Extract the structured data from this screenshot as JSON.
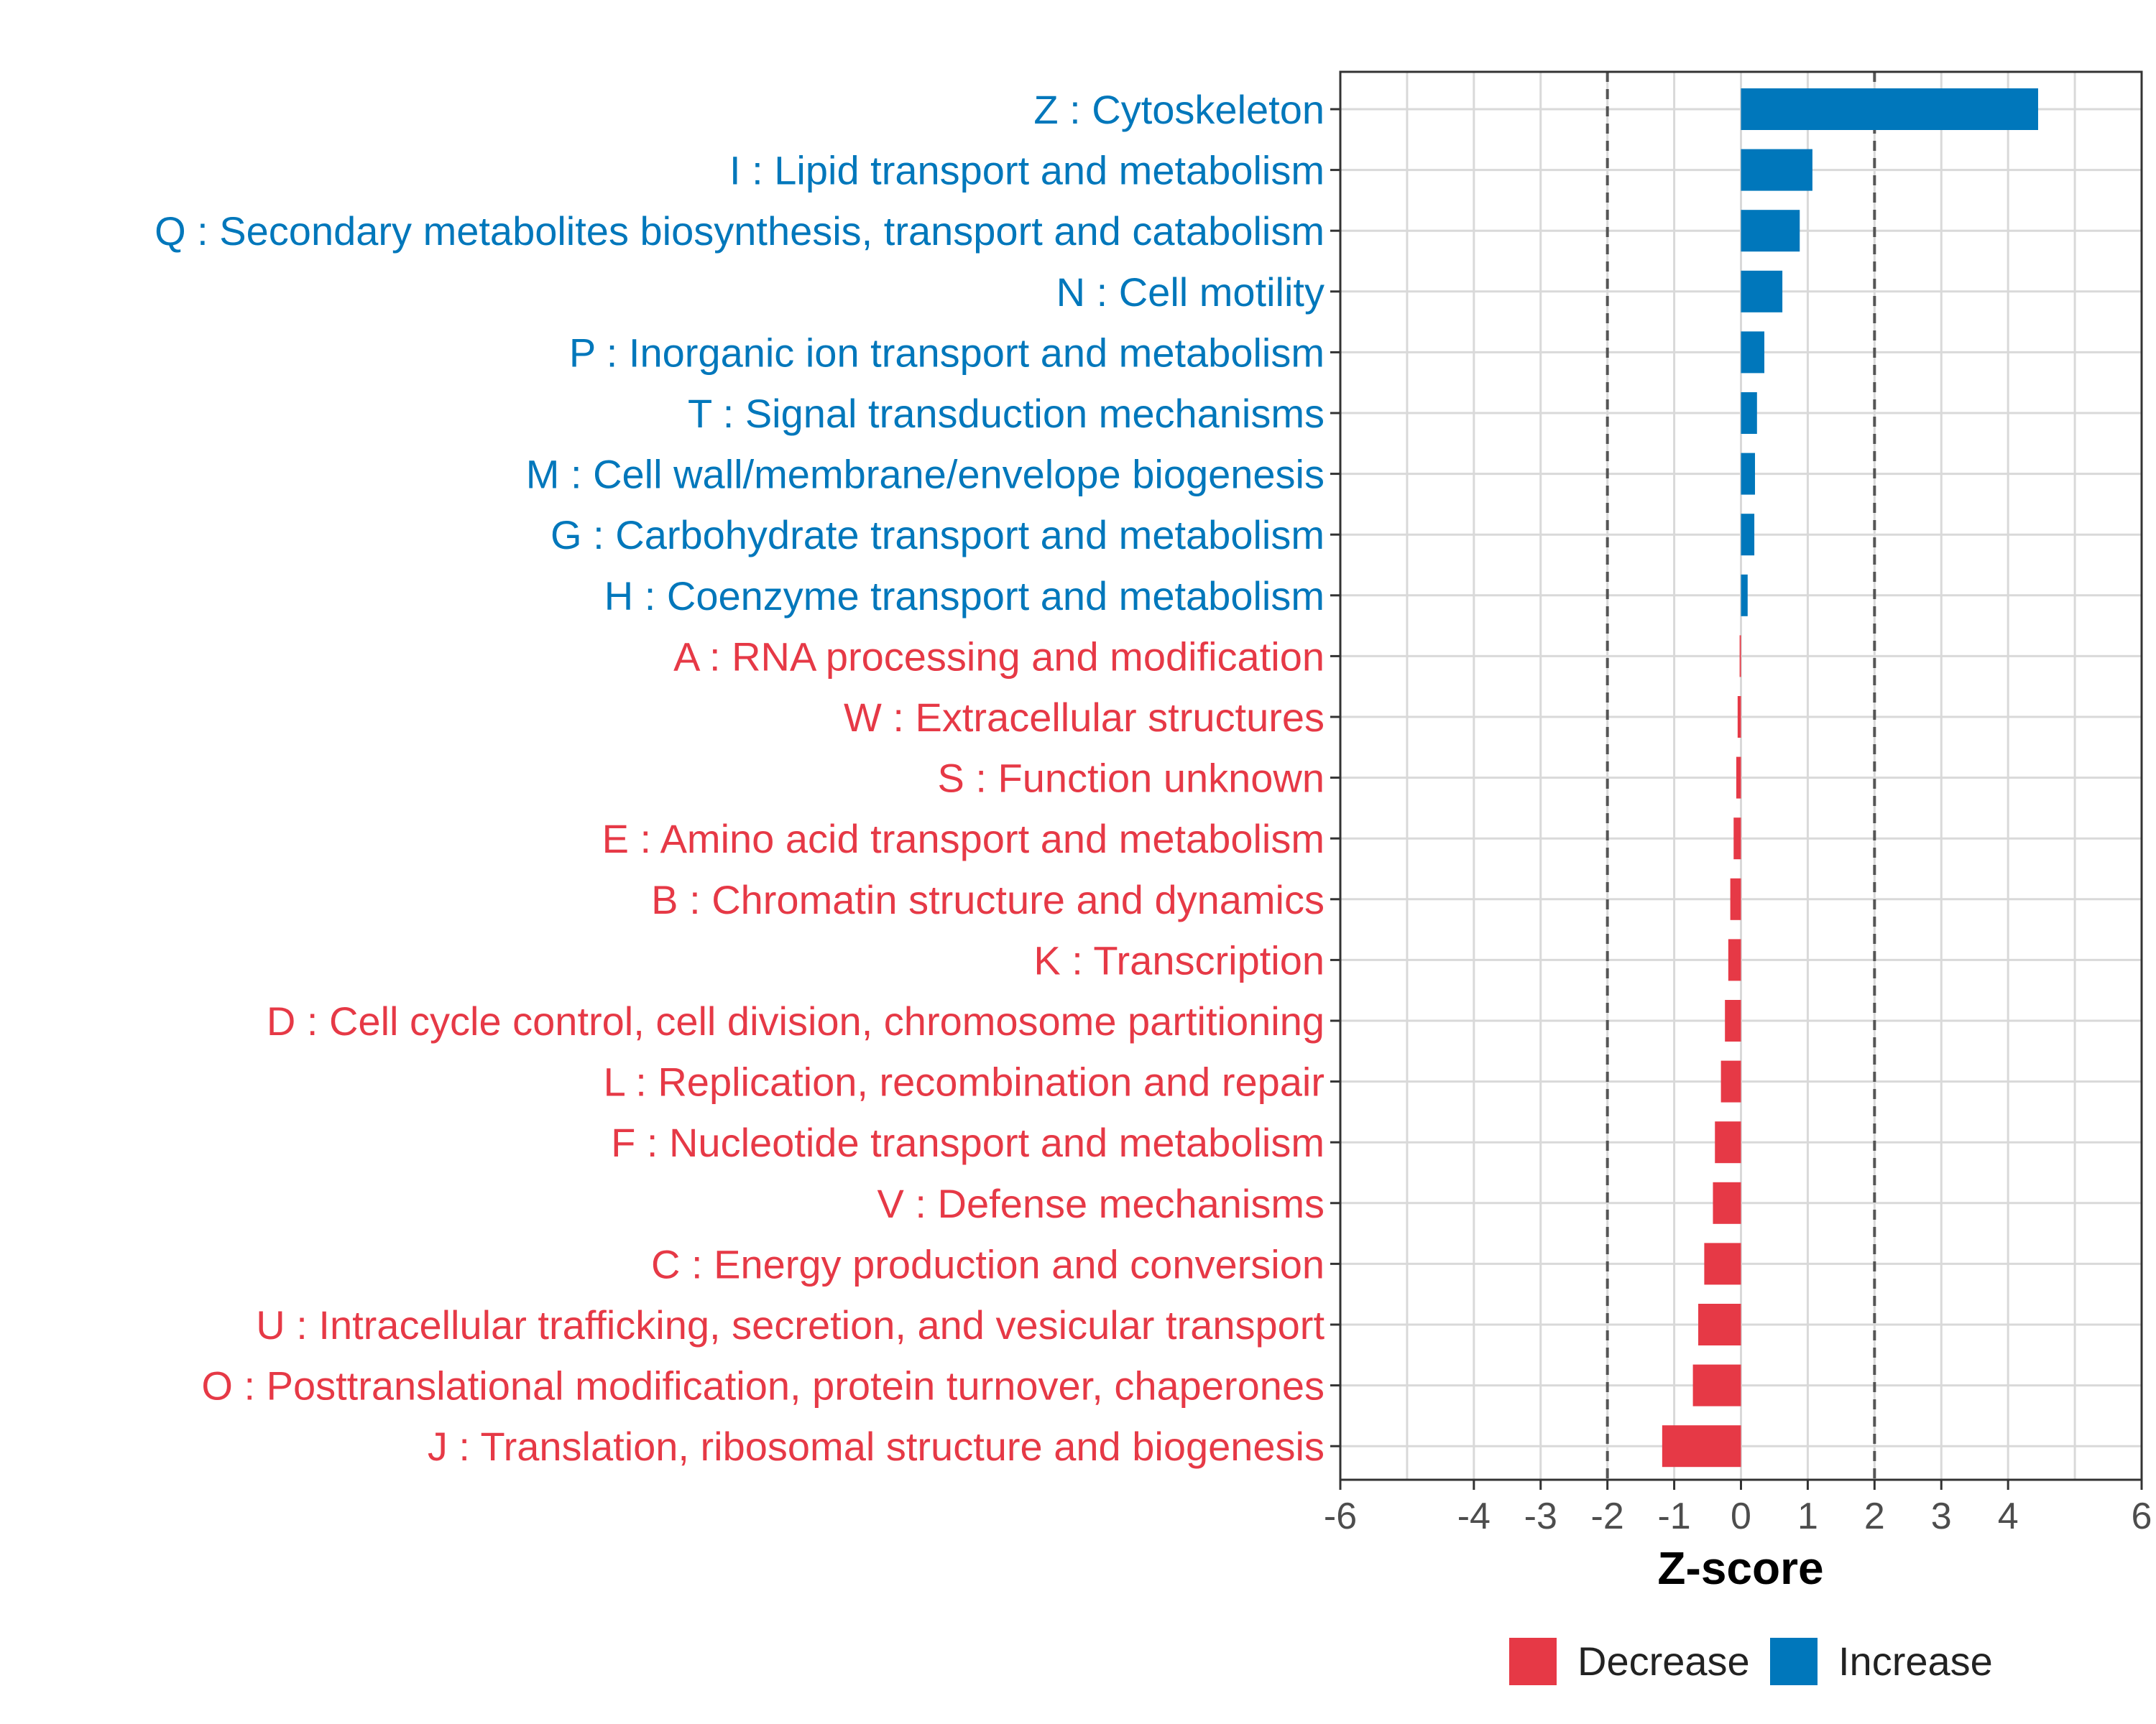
{
  "chart_data": {
    "type": "bar",
    "orientation": "horizontal",
    "title": "",
    "xlabel": "Z-score",
    "ylabel": "",
    "xlim": [
      -6,
      6
    ],
    "xticks": [
      -6,
      -4,
      -3,
      -2,
      -1,
      0,
      1,
      2,
      3,
      4,
      6
    ],
    "reference_lines": [
      -2,
      2
    ],
    "grid": true,
    "colors": {
      "Decrease": "#e63946",
      "Increase": "#0077bb",
      "reference": "#555555",
      "grid": "#d9d9d9"
    },
    "legend": {
      "placement": "bottom",
      "entries": [
        "Decrease",
        "Increase"
      ]
    },
    "categories": [
      "Z : Cytoskeleton",
      "I : Lipid transport and metabolism",
      "Q : Secondary metabolites biosynthesis, transport and catabolism",
      "N : Cell motility",
      "P : Inorganic ion transport and metabolism",
      "T : Signal transduction mechanisms",
      "M : Cell wall/membrane/envelope biogenesis",
      "G : Carbohydrate transport and metabolism",
      "H : Coenzyme transport and metabolism",
      "A : RNA processing and modification",
      "W : Extracellular structures",
      "S : Function unknown",
      "E : Amino acid transport and metabolism",
      "B : Chromatin structure and dynamics",
      "K : Transcription",
      "D : Cell cycle control, cell division, chromosome partitioning",
      "L : Replication, recombination and repair",
      "F : Nucleotide transport and metabolism",
      "V : Defense mechanisms",
      "C : Energy production and conversion",
      "U : Intracellular trafficking, secretion, and vesicular transport",
      "O : Posttranslational modification, protein turnover, chaperones",
      "J : Translation, ribosomal structure and biogenesis"
    ],
    "values": [
      4.45,
      1.07,
      0.88,
      0.62,
      0.35,
      0.24,
      0.21,
      0.2,
      0.1,
      -0.02,
      -0.05,
      -0.07,
      -0.11,
      -0.16,
      -0.19,
      -0.24,
      -0.3,
      -0.39,
      -0.42,
      -0.55,
      -0.64,
      -0.72,
      -1.18
    ],
    "groups": [
      "Increase",
      "Increase",
      "Increase",
      "Increase",
      "Increase",
      "Increase",
      "Increase",
      "Increase",
      "Increase",
      "Decrease",
      "Decrease",
      "Decrease",
      "Decrease",
      "Decrease",
      "Decrease",
      "Decrease",
      "Decrease",
      "Decrease",
      "Decrease",
      "Decrease",
      "Decrease",
      "Decrease",
      "Decrease"
    ]
  }
}
